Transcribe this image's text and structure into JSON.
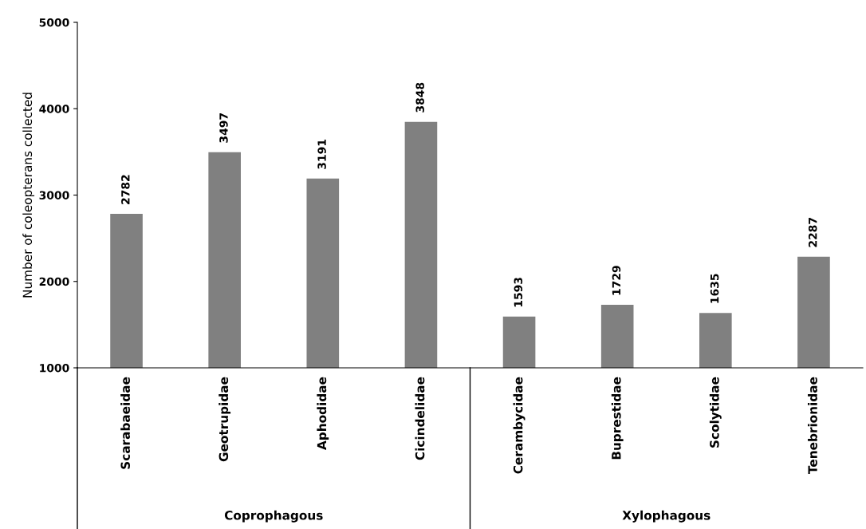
{
  "chart_data": {
    "type": "bar",
    "ylabel": "Number of coleopterans collected",
    "categories": [
      "Scarabaeidae",
      "Geotrupidae",
      "Aphodidae",
      "Cicindelidae",
      "Cerambycidae",
      "Buprestidae",
      "Scolytidae",
      "Tenebrionidae"
    ],
    "values": [
      2782,
      3497,
      3191,
      3848,
      1593,
      1729,
      1635,
      2287
    ],
    "color": "#808080",
    "ylim": [
      1000,
      5000
    ],
    "yticks": [
      1000,
      2000,
      3000,
      4000,
      5000
    ],
    "data_labels": true,
    "grid": false,
    "annotations": [
      "Coprophagous",
      "Xylophagous"
    ]
  }
}
